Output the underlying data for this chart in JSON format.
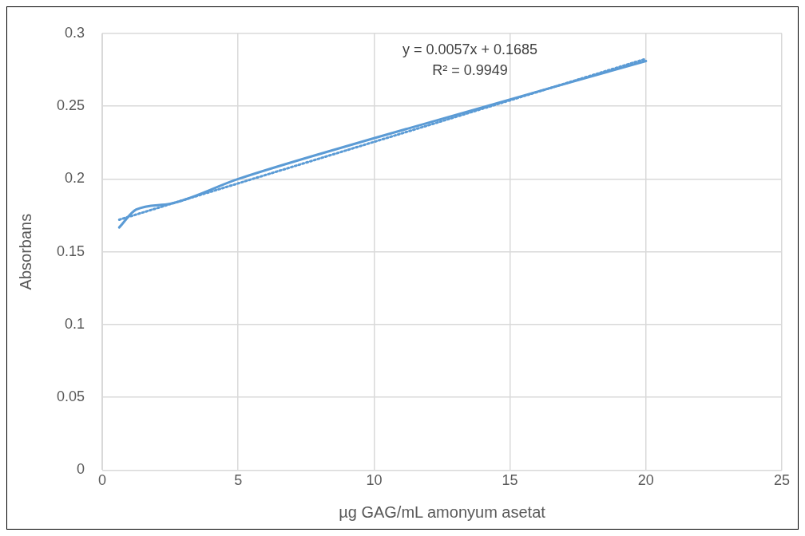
{
  "chart_data": {
    "type": "line",
    "xlabel": "µg GAG/mL amonyum asetat",
    "ylabel": "Absorbans",
    "annotations": [
      "y = 0.0057x + 0.1685",
      "R² = 0.9949"
    ],
    "series": [
      {
        "color": "#5b9bd5",
        "x": [
          0.625,
          1.25,
          2.5,
          5,
          10,
          20
        ],
        "values": [
          0.1667,
          0.179,
          0.183,
          0.2,
          0.228,
          0.281
        ],
        "line_style": "solid"
      },
      {
        "color": "#5b9bd5",
        "x": [
          0.625,
          20
        ],
        "values": [
          0.172,
          0.2825
        ],
        "line_style": "dotted"
      }
    ],
    "xlim": [
      0,
      25
    ],
    "xticks": [
      0,
      5,
      10,
      15,
      20,
      25
    ],
    "ylim": [
      0,
      0.3
    ],
    "yticks": [
      0,
      0.05,
      0.1,
      0.15,
      0.2,
      0.25,
      0.3
    ],
    "grid": true,
    "legend": false,
    "marker": "none"
  }
}
